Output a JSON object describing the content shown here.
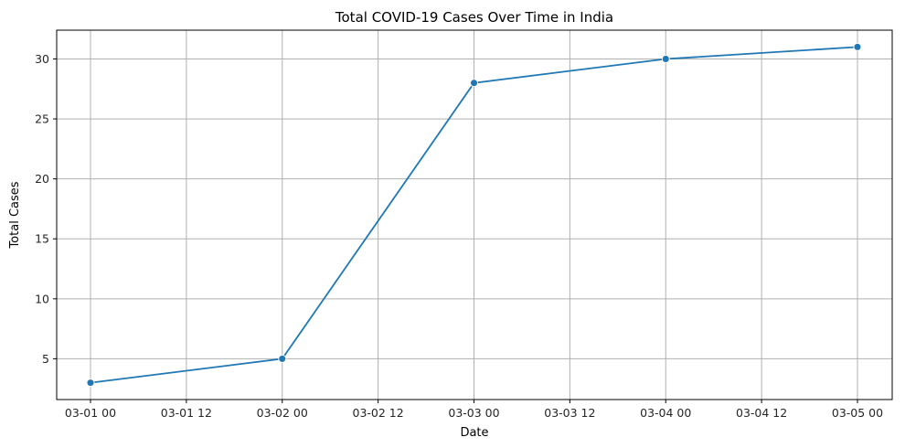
{
  "chart_data": {
    "type": "line",
    "title": "Total COVID-19 Cases Over Time in India",
    "xlabel": "Date",
    "ylabel": "Total Cases",
    "x": [
      "03-01 00",
      "03-02 00",
      "03-03 00",
      "03-04 00",
      "03-05 00"
    ],
    "series": [
      {
        "values": [
          3,
          5,
          28,
          30,
          31
        ]
      }
    ],
    "x_ticks": [
      "03-01 00",
      "03-01 12",
      "03-02 00",
      "03-02 12",
      "03-03 00",
      "03-03 12",
      "03-04 00",
      "03-04 12",
      "03-05 00"
    ],
    "y_ticks": [
      5,
      10,
      15,
      20,
      25,
      30
    ],
    "ylim": [
      1.6,
      32.4
    ],
    "grid": true,
    "marker": "circle",
    "color": "#1f77b4"
  }
}
